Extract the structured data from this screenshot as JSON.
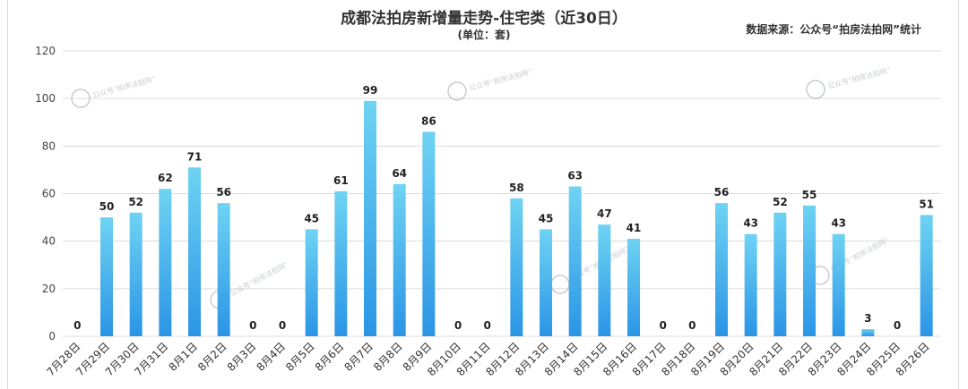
{
  "chart_data": {
    "type": "bar",
    "title": "成都法拍房新增量走势-住宅类（近30日）",
    "subtitle": "(单位：套)",
    "source": "数据来源：公众号“拍房法拍网”统计",
    "watermark": "公众号“拍房法拍网”",
    "ylim": [
      0,
      120
    ],
    "yticks": [
      0,
      20,
      40,
      60,
      80,
      100,
      120
    ],
    "grid": true,
    "categories": [
      "7月28日",
      "7月29日",
      "7月30日",
      "7月31日",
      "8月1日",
      "8月2日",
      "8月3日",
      "8月4日",
      "8月5日",
      "8月6日",
      "8月7日",
      "8月8日",
      "8月9日",
      "8月10日",
      "8月11日",
      "8月12日",
      "8月13日",
      "8月14日",
      "8月15日",
      "8月16日",
      "8月17日",
      "8月18日",
      "8月19日",
      "8月20日",
      "8月21日",
      "8月22日",
      "8月23日",
      "8月24日",
      "8月25日",
      "8月26日"
    ],
    "values": [
      0,
      50,
      52,
      62,
      71,
      56,
      0,
      0,
      45,
      61,
      99,
      64,
      86,
      0,
      0,
      58,
      45,
      63,
      47,
      41,
      0,
      0,
      56,
      43,
      52,
      55,
      43,
      3,
      0,
      51
    ],
    "colors": {
      "bar_top": "#6fd3f3",
      "bar_bottom": "#2b95e6",
      "grid": "#dcdcdc"
    }
  }
}
